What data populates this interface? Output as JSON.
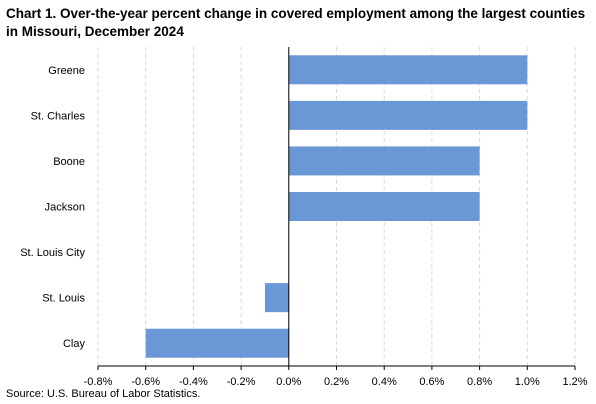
{
  "chart_data": {
    "type": "bar",
    "orientation": "horizontal",
    "title": "Chart 1.  Over-the-year percent change in covered employment among the largest counties in Missouri, December 2024",
    "categories": [
      "Greene",
      "St. Charles",
      "Boone",
      "Jackson",
      "St. Louis City",
      "St. Louis",
      "Clay"
    ],
    "values": [
      1.0,
      1.0,
      0.8,
      0.8,
      0.0,
      -0.1,
      -0.6
    ],
    "xlabel": "",
    "ylabel": "",
    "xlim": [
      -0.8,
      1.2
    ],
    "xticks": [
      -0.8,
      -0.6,
      -0.4,
      -0.2,
      0.0,
      0.2,
      0.4,
      0.6,
      0.8,
      1.0,
      1.2
    ],
    "xtick_labels": [
      "-0.8%",
      "-0.6%",
      "-0.4%",
      "-0.2%",
      "0.0%",
      "0.2%",
      "0.4%",
      "0.6%",
      "0.8%",
      "1.0%",
      "1.2%"
    ],
    "grid": "vertical-dashed",
    "bar_color": "#6a98d6",
    "source": "Source: U.S. Bureau of Labor Statistics."
  }
}
